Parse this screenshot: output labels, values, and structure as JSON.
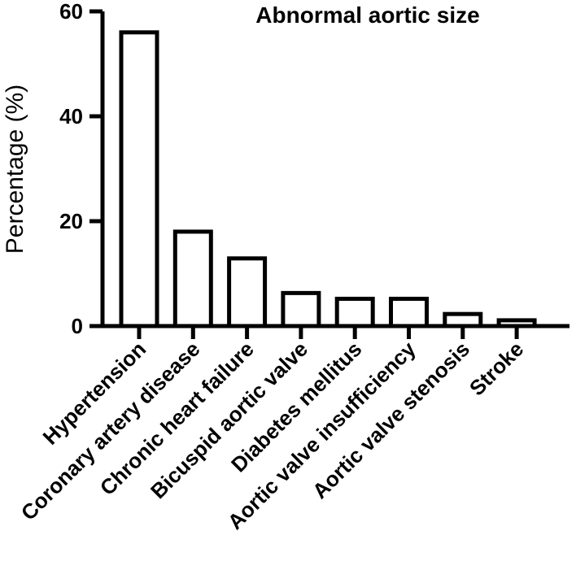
{
  "chart_data": {
    "type": "bar",
    "title": "Abnormal aortic size",
    "xlabel": "",
    "ylabel": "Percentage (%)",
    "ylim": [
      0,
      60
    ],
    "yticks": [
      0,
      20,
      40,
      60
    ],
    "categories": [
      "Hypertension",
      "Coronary artery disease",
      "Chronic heart failure",
      "Bicuspid aortic valve",
      "Diabetes mellitus",
      "Aortic valve insufficiency",
      "Aortic valve stenosis",
      "Stroke"
    ],
    "values": [
      56,
      18,
      12.9,
      6.3,
      5.2,
      5.2,
      2.3,
      1.1
    ],
    "colors": {
      "bar_fill": "#ffffff",
      "bar_stroke": "#000000",
      "axis": "#000000"
    }
  }
}
